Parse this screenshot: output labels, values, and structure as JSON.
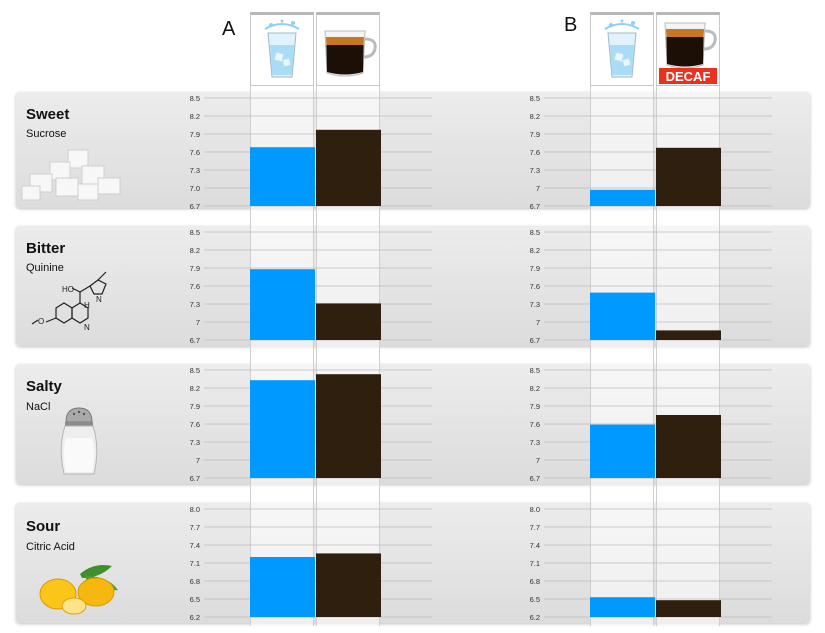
{
  "panels": [
    {
      "letter": "A"
    },
    {
      "letter": "B",
      "decaf_label": "DECAF"
    }
  ],
  "tastes": [
    {
      "name": "Sweet",
      "compound": "Sucrose",
      "icon": "sugar-cubes-icon"
    },
    {
      "name": "Bitter",
      "compound": "Quinine",
      "icon": "quinine-molecule-icon"
    },
    {
      "name": "Salty",
      "compound": "NaCl",
      "icon": "salt-shaker-icon"
    },
    {
      "name": "Sour",
      "compound": "Citric Acid",
      "icon": "lemon-icon"
    }
  ],
  "colors": {
    "water": "#0099ff",
    "coffee": "#2e1f0e",
    "grid": "#bdbdbd"
  },
  "chart_data": [
    {
      "type": "bar",
      "panel": "A",
      "taste": "Sweet",
      "series": [
        {
          "values": [
            7.68
          ]
        },
        {
          "values": [
            7.97
          ]
        }
      ],
      "ylim": [
        6.7,
        8.5
      ],
      "yticks": [
        "8.5",
        "8.2",
        "7.9",
        "7.6",
        "7.3",
        "7.0",
        "6.7"
      ]
    },
    {
      "type": "bar",
      "panel": "B",
      "taste": "Sweet",
      "series": [
        {
          "values": [
            6.97
          ]
        },
        {
          "values": [
            7.67
          ]
        }
      ],
      "ylim": [
        6.7,
        8.5
      ],
      "yticks": [
        "8.5",
        "8.2",
        "7.9",
        "7.6",
        "7.3",
        "7",
        "6.7"
      ]
    },
    {
      "type": "bar",
      "panel": "A",
      "taste": "Bitter",
      "series": [
        {
          "values": [
            7.88
          ]
        },
        {
          "values": [
            7.31
          ]
        }
      ],
      "ylim": [
        6.7,
        8.5
      ],
      "yticks": [
        "8.5",
        "8.2",
        "7.9",
        "7.6",
        "7.3",
        "7",
        "6.7"
      ]
    },
    {
      "type": "bar",
      "panel": "B",
      "taste": "Bitter",
      "series": [
        {
          "values": [
            7.49
          ]
        },
        {
          "values": [
            6.86
          ]
        }
      ],
      "ylim": [
        6.7,
        8.5
      ],
      "yticks": [
        "8.5",
        "8.2",
        "7.9",
        "7.6",
        "7.3",
        "7",
        "6.7"
      ]
    },
    {
      "type": "bar",
      "panel": "A",
      "taste": "Salty",
      "series": [
        {
          "values": [
            8.33
          ]
        },
        {
          "values": [
            8.43
          ]
        }
      ],
      "ylim": [
        6.7,
        8.5
      ],
      "yticks": [
        "8.5",
        "8.2",
        "7.9",
        "7.6",
        "7.3",
        "7",
        "6.7"
      ]
    },
    {
      "type": "bar",
      "panel": "B",
      "taste": "Salty",
      "series": [
        {
          "values": [
            7.59
          ]
        },
        {
          "values": [
            7.75
          ]
        }
      ],
      "ylim": [
        6.7,
        8.5
      ],
      "yticks": [
        "8.5",
        "8.2",
        "7.9",
        "7.6",
        "7.3",
        "7",
        "6.7"
      ]
    },
    {
      "type": "bar",
      "panel": "A",
      "taste": "Sour",
      "series": [
        {
          "values": [
            7.2
          ]
        },
        {
          "values": [
            7.26
          ]
        }
      ],
      "ylim": [
        6.2,
        8.0
      ],
      "yticks": [
        "8.0",
        "7.7",
        "7.4",
        "7.1",
        "6.8",
        "6.5",
        "6.2"
      ]
    },
    {
      "type": "bar",
      "panel": "B",
      "taste": "Sour",
      "series": [
        {
          "values": [
            6.53
          ]
        },
        {
          "values": [
            6.48
          ]
        }
      ],
      "ylim": [
        6.2,
        8.0
      ],
      "yticks": [
        "8.0",
        "7.7",
        "7.4",
        "7.1",
        "6.8",
        "6.5",
        "6.2"
      ]
    }
  ]
}
